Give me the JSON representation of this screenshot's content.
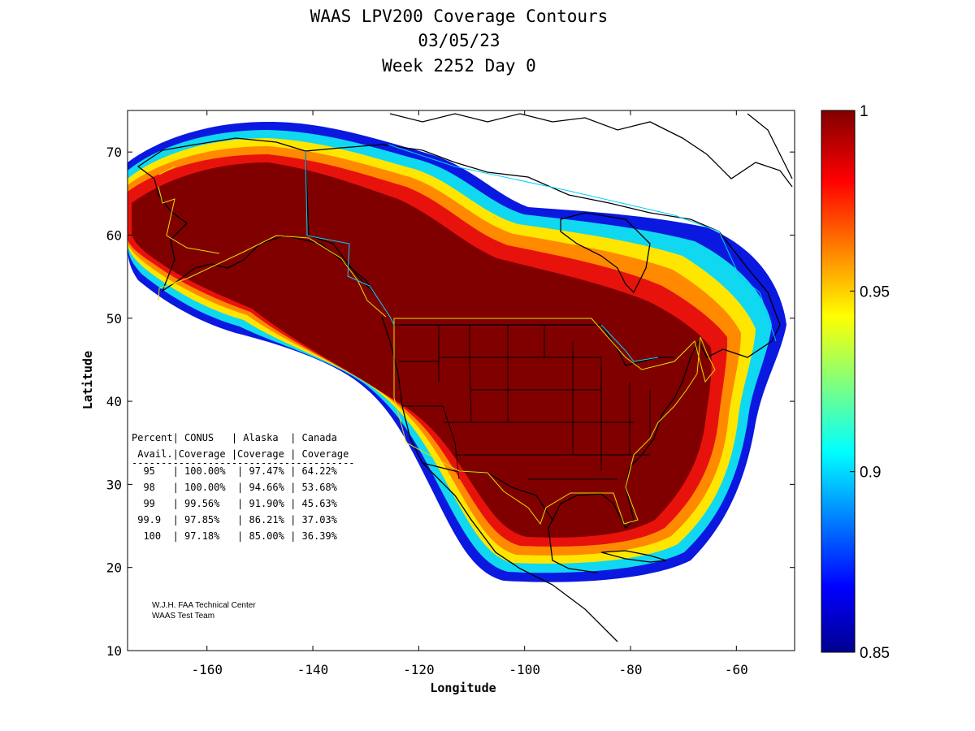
{
  "title": {
    "line1": "WAAS LPV200 Coverage Contours",
    "line2": "03/05/23",
    "line3": "Week 2252 Day 0"
  },
  "axes": {
    "xlabel": "Longitude",
    "ylabel": "Latitude",
    "xlim": [
      -175,
      -49
    ],
    "ylim": [
      10,
      75
    ],
    "x_ticks": [
      -160,
      -140,
      -120,
      -100,
      -80,
      -60
    ],
    "y_ticks": [
      10,
      20,
      30,
      40,
      50,
      60,
      70
    ]
  },
  "colorbar": {
    "range": [
      0.85,
      1
    ],
    "ticks": [
      1,
      0.95,
      0.9,
      0.85
    ],
    "tick_labels": [
      "1",
      "0.95",
      "0.9",
      "0.85"
    ],
    "colormap": "jet"
  },
  "coverage_table": {
    "header1": "Percent| CONUS   | Alaska  | Canada",
    "header2": " Avail.|Coverage |Coverage | Coverage",
    "separator": "--------------------------------------",
    "rows": [
      "  95   | 100.00%  | 97.47% | 64.22%",
      "  98   | 100.00%  | 94.66% | 53.68%",
      "  99   | 99.56%   | 91.90% | 45.63%",
      " 99.9  | 97.85%   | 86.21% | 37.03%",
      "  100  | 97.18%   | 85.00% | 36.39%"
    ]
  },
  "credits": {
    "line1": "W.J.H. FAA Technical Center",
    "line2": "WAAS Test Team"
  },
  "colors": {
    "max": "#800000",
    "red": "#e01010",
    "orange": "#ff9000",
    "yellow": "#ffee00",
    "cyan": "#00ccff",
    "blue": "#1030ff",
    "min": "#000088"
  }
}
